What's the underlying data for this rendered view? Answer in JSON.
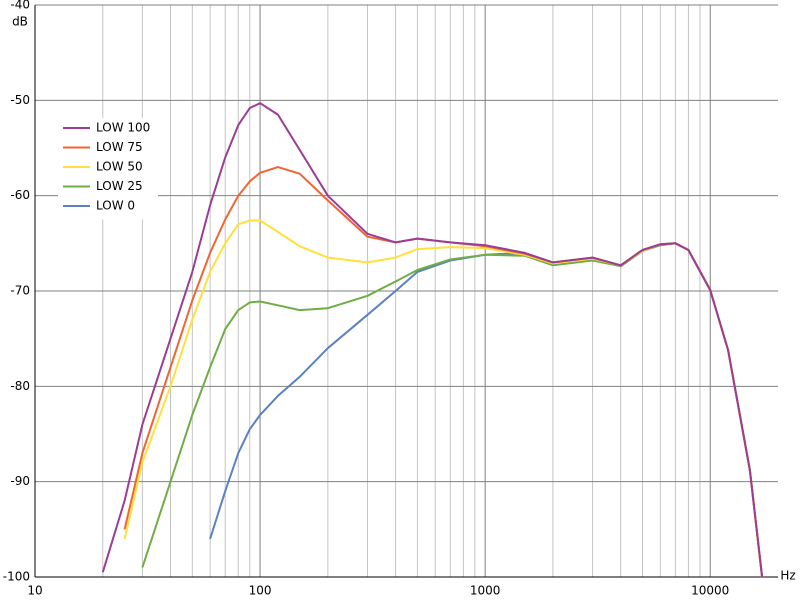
{
  "chart_data": {
    "type": "line",
    "y_label": "dB",
    "x_label": "Hz",
    "x_scale": "log",
    "xlim": [
      10,
      20000
    ],
    "xticks": [
      10,
      100,
      1000,
      10000
    ],
    "x_minor_gridlines": [
      20,
      30,
      40,
      50,
      60,
      70,
      80,
      90,
      200,
      300,
      400,
      500,
      600,
      700,
      800,
      900,
      2000,
      3000,
      4000,
      5000,
      6000,
      7000,
      8000,
      9000
    ],
    "ylim": [
      -100,
      -40
    ],
    "yticks": [
      -40,
      -50,
      -60,
      -70,
      -80,
      -90,
      -100
    ],
    "grid": true,
    "legend": "upper-left",
    "x": [
      20,
      25,
      30,
      40,
      50,
      60,
      70,
      80,
      90,
      100,
      120,
      150,
      200,
      300,
      400,
      500,
      700,
      1000,
      1500,
      2000,
      3000,
      4000,
      5000,
      6000,
      7000,
      8000,
      10000,
      12000,
      15000,
      17000
    ],
    "series": [
      {
        "name": "LOW 100",
        "color": "#9b3d96",
        "values": [
          -99.5,
          -92,
          -84,
          -75,
          -68,
          -61,
          -56,
          -52.6,
          -50.8,
          -50.3,
          -51.5,
          -55.2,
          -60,
          -64,
          -64.9,
          -64.5,
          -64.9,
          -65.2,
          -66,
          -67,
          -66.5,
          -67.3,
          -65.7,
          -65.1,
          -65,
          -65.7,
          -69.9,
          -76.2,
          -88.8,
          -100
        ]
      },
      {
        "name": "LOW 75",
        "color": "#f26430",
        "values": [
          null,
          -95,
          -87,
          -78,
          -71,
          -66,
          -62.5,
          -60,
          -58.5,
          -57.6,
          -57,
          -57.7,
          -60.5,
          -64.3,
          -64.9,
          -64.5,
          -64.9,
          -65.3,
          -66.1,
          -67,
          -66.5,
          -67.3,
          -65.7,
          -65.1,
          -65,
          -65.7,
          -69.9,
          -76.2,
          -88.8,
          -100
        ]
      },
      {
        "name": "LOW 50",
        "color": "#ffe03c",
        "values": [
          null,
          -96,
          -88,
          -80,
          -73,
          -68,
          -65,
          -63,
          -62.6,
          -62.6,
          -63.8,
          -65.3,
          -66.5,
          -67,
          -66.5,
          -65.6,
          -65.4,
          -65.5,
          -66.2,
          -67.1,
          -66.6,
          -67.3,
          -65.8,
          -65.1,
          -65,
          -65.7,
          -69.9,
          -76.2,
          -88.8,
          -100
        ]
      },
      {
        "name": "LOW 25",
        "color": "#6fad45",
        "values": [
          null,
          null,
          -99,
          -90,
          -83,
          -78,
          -74,
          -72,
          -71.2,
          -71.1,
          -71.5,
          -72,
          -71.8,
          -70.5,
          -69,
          -67.8,
          -66.7,
          -66.2,
          -66.3,
          -67.3,
          -66.8,
          -67.4,
          -65.8,
          -65.2,
          -65,
          -65.7,
          -69.9,
          -76.2,
          -88.8,
          -100
        ]
      },
      {
        "name": "LOW 0",
        "color": "#5b82bf",
        "values": [
          null,
          null,
          null,
          null,
          null,
          -96,
          -91,
          -87,
          -84.5,
          -83,
          -81,
          -79,
          -76,
          -72.5,
          -70,
          -68,
          -66.8,
          -66.2,
          -66,
          -67.2,
          -66.7,
          -67.4,
          -65.8,
          -65.2,
          -65,
          -65.7,
          -69.9,
          -76.2,
          -88.8,
          -100
        ]
      }
    ]
  }
}
